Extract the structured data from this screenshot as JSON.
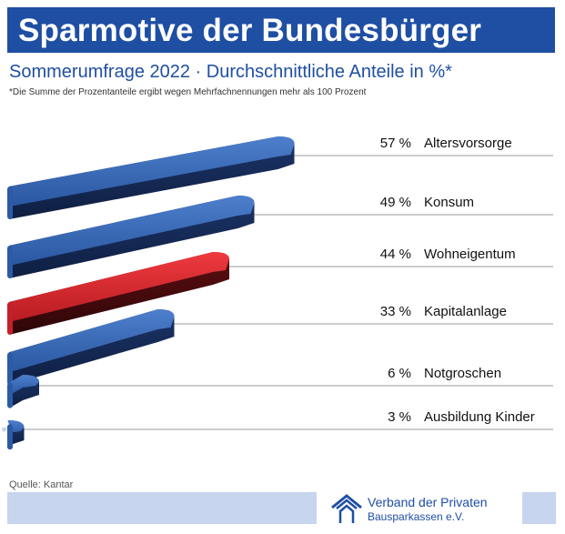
{
  "header": {
    "title": "Sparmotive der Bundesbürger",
    "subtitle": "Sommerumfrage 2022 · Durchschnittliche Anteile in %*",
    "note": "*Die Summe der Prozentanteile ergibt wegen Mehrfachnennungen mehr als 100 Prozent"
  },
  "chart_data": {
    "type": "bar",
    "orientation": "horizontal",
    "title": "Sparmotive der Bundesbürger",
    "subtitle": "Sommerumfrage 2022 · Durchschnittliche Anteile in %*",
    "categories": [
      "Altersvorsorge",
      "Konsum",
      "Wohneigentum",
      "Kapitalanlage",
      "Notgroschen",
      "Ausbildung Kinder"
    ],
    "values": [
      57,
      49,
      44,
      33,
      6,
      3
    ],
    "value_labels": [
      "57 %",
      "49 %",
      "44 %",
      "33 %",
      "6 %",
      "3 %"
    ],
    "highlight": [
      false,
      false,
      true,
      false,
      false,
      false
    ],
    "unit": "%",
    "xlim": [
      0,
      60
    ],
    "colors": {
      "bar": "#2e5fae",
      "bar_dark": "#1a3468",
      "highlight": "#d8242b",
      "highlight_dark": "#6e1115",
      "title_band": "#1f4fa3",
      "leader_line": "#999999"
    }
  },
  "footer": {
    "source": "Quelle: Kantar",
    "org_line1": "Verband der Privaten",
    "org_line2": "Bausparkassen e.V.",
    "logo_icon": "house-icon",
    "band_color": "#c7d5ee"
  }
}
